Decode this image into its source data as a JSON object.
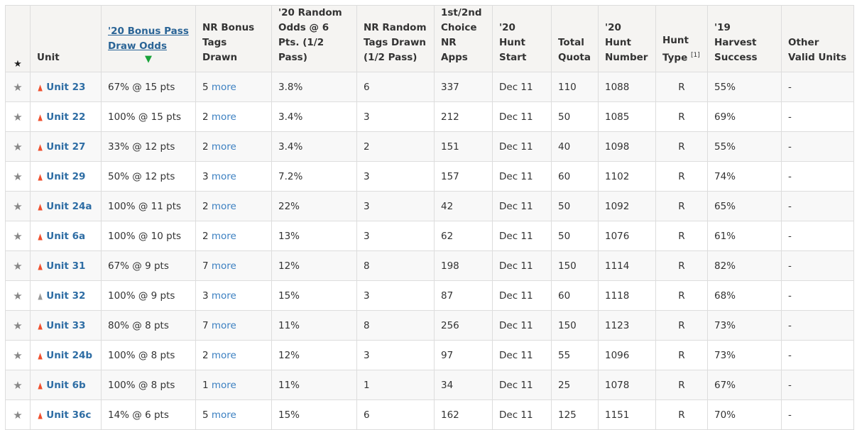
{
  "colors": {
    "link": "#2e6da4",
    "flame_hot": "#f0502e",
    "flame_cold": "#999999",
    "sort_arrow": "#1aa33a"
  },
  "icons": {
    "flame": "▲"
  },
  "headers": {
    "star": "★",
    "unit": "Unit",
    "bonus_odds": "'20 Bonus Pass Draw Odds",
    "sort_indicator": "▼",
    "nr_bonus": "NR Bonus Tags Drawn",
    "random_odds": "'20 Random Odds @ 6 Pts. (1/2 Pass)",
    "nr_random": "NR Random Tags Drawn (1/2 Pass)",
    "nr_apps": "1st/2nd Choice NR Apps",
    "hunt_start": "'20 Hunt Start",
    "quota": "Total Quota",
    "hunt_number": "'20 Hunt Number",
    "hunt_type": "Hunt Type",
    "hunt_type_note": "[1]",
    "harvest": "'19 Harvest Success",
    "other_units": "Other Valid Units"
  },
  "more_label": "more",
  "rows": [
    {
      "unit": "Unit 23",
      "flame": "hot",
      "odds": "67% @ 15 pts",
      "bonus": "5",
      "random": "3.8%",
      "nr_random": "6",
      "apps": "337",
      "start": "Dec 11",
      "quota": "110",
      "number": "1088",
      "type": "R",
      "harvest": "55%",
      "other": "-"
    },
    {
      "unit": "Unit 22",
      "flame": "hot",
      "odds": "100% @ 15 pts",
      "bonus": "2",
      "random": "3.4%",
      "nr_random": "3",
      "apps": "212",
      "start": "Dec 11",
      "quota": "50",
      "number": "1085",
      "type": "R",
      "harvest": "69%",
      "other": "-"
    },
    {
      "unit": "Unit 27",
      "flame": "hot",
      "odds": "33% @ 12 pts",
      "bonus": "2",
      "random": "3.4%",
      "nr_random": "2",
      "apps": "151",
      "start": "Dec 11",
      "quota": "40",
      "number": "1098",
      "type": "R",
      "harvest": "55%",
      "other": "-"
    },
    {
      "unit": "Unit 29",
      "flame": "hot",
      "odds": "50% @ 12 pts",
      "bonus": "3",
      "random": "7.2%",
      "nr_random": "3",
      "apps": "157",
      "start": "Dec 11",
      "quota": "60",
      "number": "1102",
      "type": "R",
      "harvest": "74%",
      "other": "-"
    },
    {
      "unit": "Unit 24a",
      "flame": "hot",
      "odds": "100% @ 11 pts",
      "bonus": "2",
      "random": "22%",
      "nr_random": "3",
      "apps": "42",
      "start": "Dec 11",
      "quota": "50",
      "number": "1092",
      "type": "R",
      "harvest": "65%",
      "other": "-"
    },
    {
      "unit": "Unit 6a",
      "flame": "hot",
      "odds": "100% @ 10 pts",
      "bonus": "2",
      "random": "13%",
      "nr_random": "3",
      "apps": "62",
      "start": "Dec 11",
      "quota": "50",
      "number": "1076",
      "type": "R",
      "harvest": "61%",
      "other": "-"
    },
    {
      "unit": "Unit 31",
      "flame": "hot",
      "odds": "67% @ 9 pts",
      "bonus": "7",
      "random": "12%",
      "nr_random": "8",
      "apps": "198",
      "start": "Dec 11",
      "quota": "150",
      "number": "1114",
      "type": "R",
      "harvest": "82%",
      "other": "-"
    },
    {
      "unit": "Unit 32",
      "flame": "cold",
      "odds": "100% @ 9 pts",
      "bonus": "3",
      "random": "15%",
      "nr_random": "3",
      "apps": "87",
      "start": "Dec 11",
      "quota": "60",
      "number": "1118",
      "type": "R",
      "harvest": "68%",
      "other": "-"
    },
    {
      "unit": "Unit 33",
      "flame": "hot",
      "odds": "80% @ 8 pts",
      "bonus": "7",
      "random": "11%",
      "nr_random": "8",
      "apps": "256",
      "start": "Dec 11",
      "quota": "150",
      "number": "1123",
      "type": "R",
      "harvest": "73%",
      "other": "-"
    },
    {
      "unit": "Unit 24b",
      "flame": "hot",
      "odds": "100% @ 8 pts",
      "bonus": "2",
      "random": "12%",
      "nr_random": "3",
      "apps": "97",
      "start": "Dec 11",
      "quota": "55",
      "number": "1096",
      "type": "R",
      "harvest": "73%",
      "other": "-"
    },
    {
      "unit": "Unit 6b",
      "flame": "hot",
      "odds": "100% @ 8 pts",
      "bonus": "1",
      "random": "11%",
      "nr_random": "1",
      "apps": "34",
      "start": "Dec 11",
      "quota": "25",
      "number": "1078",
      "type": "R",
      "harvest": "67%",
      "other": "-"
    },
    {
      "unit": "Unit 36c",
      "flame": "hot",
      "odds": "14% @ 6 pts",
      "bonus": "5",
      "random": "15%",
      "nr_random": "6",
      "apps": "162",
      "start": "Dec 11",
      "quota": "125",
      "number": "1151",
      "type": "R",
      "harvest": "70%",
      "other": "-"
    }
  ]
}
